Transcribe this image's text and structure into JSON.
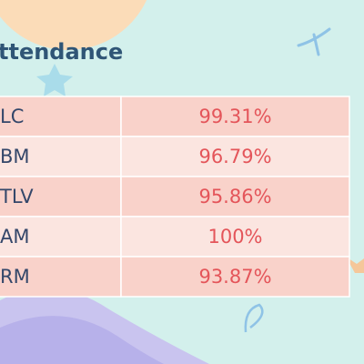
{
  "title": "ttendance",
  "table": {
    "rows": [
      [
        "LC",
        "99.31%"
      ],
      [
        "BM",
        "96.79%"
      ],
      [
        "TLV",
        "95.86%"
      ],
      [
        "AM",
        "100%"
      ],
      [
        "RM",
        "93.87%"
      ]
    ]
  }
}
